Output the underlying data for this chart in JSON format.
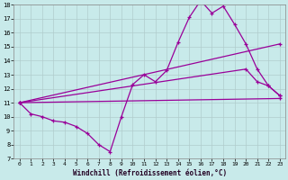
{
  "xlabel": "Windchill (Refroidissement éolien,°C)",
  "background_color": "#c8eaea",
  "grid_color": "#b0cccc",
  "line_color": "#990099",
  "xlim": [
    -0.5,
    23.5
  ],
  "ylim": [
    7,
    18
  ],
  "xticks": [
    0,
    1,
    2,
    3,
    4,
    5,
    6,
    7,
    8,
    9,
    10,
    11,
    12,
    13,
    14,
    15,
    16,
    17,
    18,
    19,
    20,
    21,
    22,
    23
  ],
  "yticks": [
    7,
    8,
    9,
    10,
    11,
    12,
    13,
    14,
    15,
    16,
    17,
    18
  ],
  "series": [
    {
      "x": [
        0,
        1,
        2,
        3,
        4,
        5,
        6,
        7,
        8,
        9,
        10,
        11,
        12,
        13,
        14,
        15,
        16,
        17,
        18,
        19,
        20,
        21,
        22,
        23
      ],
      "y": [
        11,
        10.2,
        10.0,
        9.7,
        9.6,
        9.3,
        8.8,
        8.0,
        7.5,
        10.0,
        12.3,
        13.0,
        12.5,
        13.3,
        15.3,
        17.1,
        18.3,
        17.4,
        17.9,
        16.6,
        15.2,
        13.4,
        12.2,
        11.5
      ]
    },
    {
      "x": [
        0,
        23
      ],
      "y": [
        11,
        15.2
      ]
    },
    {
      "x": [
        0,
        20,
        21,
        22,
        23
      ],
      "y": [
        11,
        13.4,
        12.5,
        12.2,
        11.5
      ]
    },
    {
      "x": [
        0,
        23
      ],
      "y": [
        11,
        11.3
      ]
    }
  ]
}
